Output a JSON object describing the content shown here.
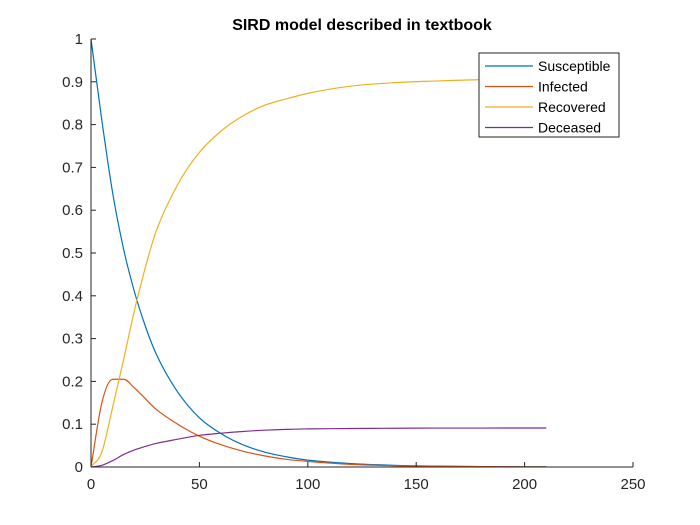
{
  "chart_data": {
    "type": "line",
    "title": "SIRD model described in textbook",
    "xlabel": "",
    "ylabel": "",
    "xlim": [
      0,
      250
    ],
    "ylim": [
      0,
      1
    ],
    "x_ticks": [
      0,
      50,
      100,
      150,
      200,
      250
    ],
    "y_ticks": [
      0,
      0.1,
      0.2,
      0.3,
      0.4,
      0.5,
      0.6,
      0.7,
      0.8,
      0.9,
      1
    ],
    "x_tick_labels": [
      "0",
      "50",
      "100",
      "150",
      "200",
      "250"
    ],
    "y_tick_labels": [
      "0",
      "0.1",
      "0.2",
      "0.3",
      "0.4",
      "0.5",
      "0.6",
      "0.7",
      "0.8",
      "0.9",
      "1"
    ],
    "grid": false,
    "legend_position": "top-right",
    "x": [
      0,
      5,
      10,
      15,
      20,
      25,
      30,
      40,
      50,
      60,
      70,
      80,
      90,
      100,
      120,
      140,
      160,
      180,
      200,
      210
    ],
    "series": [
      {
        "name": "Susceptible",
        "color": "#0072BD",
        "values": [
          1.0,
          0.81,
          0.64,
          0.51,
          0.41,
          0.33,
          0.265,
          0.175,
          0.115,
          0.078,
          0.052,
          0.035,
          0.024,
          0.016,
          0.008,
          0.004,
          0.002,
          0.001,
          0.0005,
          0.0003
        ]
      },
      {
        "name": "Infected",
        "color": "#D95319",
        "values": [
          0.0,
          0.15,
          0.205,
          0.205,
          0.185,
          0.16,
          0.135,
          0.1,
          0.072,
          0.052,
          0.037,
          0.026,
          0.018,
          0.013,
          0.006,
          0.003,
          0.0015,
          0.0008,
          0.0004,
          0.0002
        ]
      },
      {
        "name": "Recovered",
        "color": "#EDB120",
        "values": [
          0.0,
          0.035,
          0.14,
          0.25,
          0.365,
          0.465,
          0.55,
          0.66,
          0.735,
          0.785,
          0.82,
          0.845,
          0.86,
          0.873,
          0.89,
          0.898,
          0.902,
          0.905,
          0.906,
          0.907
        ]
      },
      {
        "name": "Deceased",
        "color": "#7E2F8E",
        "values": [
          0.0,
          0.004,
          0.015,
          0.029,
          0.04,
          0.048,
          0.055,
          0.065,
          0.074,
          0.079,
          0.083,
          0.086,
          0.088,
          0.089,
          0.09,
          0.0905,
          0.091,
          0.091,
          0.0912,
          0.0912
        ]
      }
    ]
  }
}
